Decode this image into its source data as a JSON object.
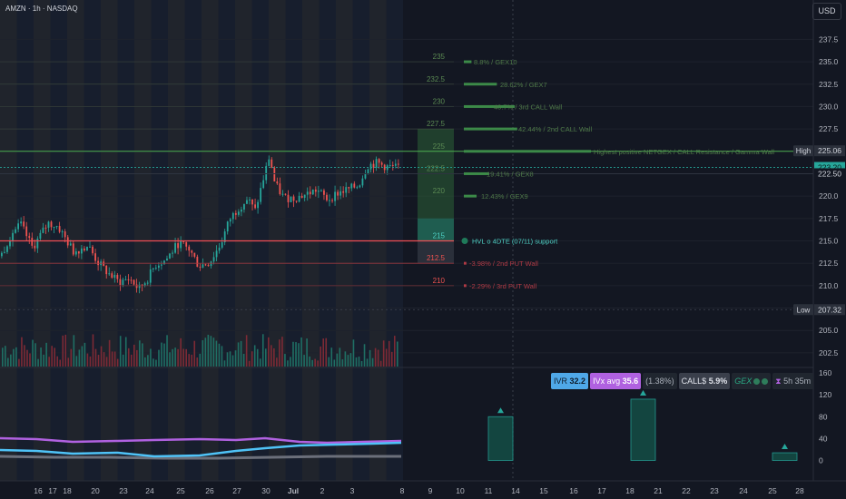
{
  "header": {
    "symbol": "AMZN",
    "interval": "1h",
    "exchange": "NASDAQ",
    "currency": "USD"
  },
  "chart_data": {
    "type": "candlestick",
    "symbol": "AMZN",
    "ylim": [
      201,
      239
    ],
    "y_ticks": [
      202.5,
      205.0,
      207.5,
      210.0,
      212.5,
      215.0,
      217.5,
      220.0,
      222.5,
      225.0,
      227.5,
      230.0,
      232.5,
      235.0,
      237.5
    ],
    "x_tick_labels": [
      "16",
      "17",
      "18",
      "20",
      "23",
      "24",
      "25",
      "26",
      "27",
      "30",
      "Jul",
      "2",
      "3",
      "8",
      "9",
      "10",
      "11",
      "14",
      "15",
      "16",
      "17",
      "18",
      "21",
      "22",
      "23",
      "24",
      "25",
      "28"
    ],
    "price_badges": [
      {
        "label": "High",
        "value": "225.06",
        "color": "#2b303b"
      },
      {
        "label": "",
        "value": "223.20",
        "color": "#26a69a"
      },
      {
        "label": "",
        "value": "222.50",
        "color": "#131722"
      },
      {
        "label": "Low",
        "value": "207.32",
        "color": "#2b303b"
      }
    ],
    "close_anchors": [
      [
        0,
        213.3
      ],
      [
        12,
        215.9
      ],
      [
        22,
        216.8
      ],
      [
        35,
        214.2
      ],
      [
        52,
        217.0
      ],
      [
        63,
        216.6
      ],
      [
        80,
        213.8
      ],
      [
        96,
        214.5
      ],
      [
        106,
        212.7
      ],
      [
        118,
        211.4
      ],
      [
        130,
        210.4
      ],
      [
        142,
        210.8
      ],
      [
        152,
        209.6
      ],
      [
        162,
        210.8
      ],
      [
        170,
        212.3
      ],
      [
        182,
        212.9
      ],
      [
        196,
        214.8
      ],
      [
        208,
        214.0
      ],
      [
        218,
        212.2
      ],
      [
        230,
        212.6
      ],
      [
        242,
        214.6
      ],
      [
        252,
        217.4
      ],
      [
        262,
        218.7
      ],
      [
        272,
        219.7
      ],
      [
        280,
        218.3
      ],
      [
        288,
        221.4
      ],
      [
        296,
        224.5
      ],
      [
        302,
        221.3
      ],
      [
        312,
        219.8
      ],
      [
        324,
        219.8
      ],
      [
        336,
        220.2
      ],
      [
        348,
        220.7
      ],
      [
        360,
        219.6
      ],
      [
        372,
        220.4
      ],
      [
        384,
        220.8
      ],
      [
        394,
        221.2
      ],
      [
        404,
        223.4
      ],
      [
        414,
        223.7
      ],
      [
        424,
        223.3
      ],
      [
        434,
        223.2
      ],
      [
        442,
        223.2
      ]
    ],
    "gex_levels": [
      {
        "price": 235.0,
        "label": "235",
        "text": "8.8% / GEX10",
        "bar": 0.03
      },
      {
        "price": 232.5,
        "label": "232.5",
        "text": "28.62% / GEX7",
        "bar": 0.13
      },
      {
        "price": 230.0,
        "label": "230",
        "text": "40.7% / 3rd CALL Wall",
        "bar": 0.2
      },
      {
        "price": 227.5,
        "label": "227.5",
        "text": "42.44% / 2nd CALL Wall",
        "bar": 0.21
      },
      {
        "price": 225.0,
        "label": "225",
        "text": "Highest positive NETGEX / CALL Resistance / Gamma Wall",
        "bar": 0.5
      },
      {
        "price": 222.5,
        "label": "222.5",
        "text": "19.41% / GEX8",
        "bar": 0.1
      },
      {
        "price": 220.0,
        "label": "220",
        "text": "12.43% / GEX9",
        "bar": 0.05
      },
      {
        "price": 215.0,
        "label": "215",
        "text": "HVL o 4DTE (07/11) support",
        "bar": 0
      },
      {
        "price": 212.5,
        "label": "212.5",
        "text": "-3.98% / 2nd PUT Wall",
        "bar": 0.01
      },
      {
        "price": 210.0,
        "label": "210",
        "text": "-2.29% / 3rd PUT Wall",
        "bar": 0.01
      }
    ],
    "volume_bars_count": 145,
    "lower_panel": {
      "ylim": [
        -10,
        170
      ],
      "y_ticks": [
        0,
        40,
        80,
        120,
        160
      ],
      "iv_bars": [
        {
          "x_label": "11",
          "value": 80
        },
        {
          "x_label": "18",
          "value": 112
        },
        {
          "x_label": "25",
          "value": 14
        }
      ]
    }
  },
  "indicator": {
    "ivr_label": "IVR",
    "ivr_value": "32.2",
    "ivx_label": "IVx avg",
    "ivx_value": "35.6",
    "pct": "(1.38%)",
    "call_label": "CALL$",
    "call_value": "5.9%",
    "gex_label": "GEX",
    "time_left": "5h 35m"
  }
}
